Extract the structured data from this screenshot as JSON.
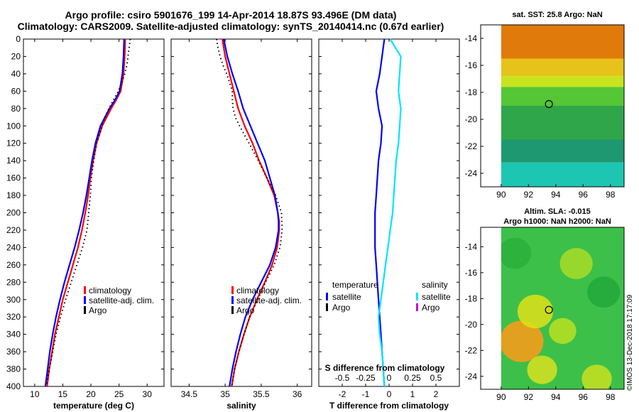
{
  "header": {
    "title_line1": "Argo profile: csiro 5901676_199 14-Apr-2014 18.87S 93.496E (DM data)",
    "title_line2": "Climatology: CARS2009. Satellite-adjusted climatology: synTS_20140414.nc (0.67d earlier)"
  },
  "colors": {
    "climatology": "#ff0000",
    "satellite": "#0000ff",
    "argo": "#000000",
    "sat_salinity": "#00e5ff",
    "argo_salinity": "#cc00cc"
  },
  "chart_data": [
    {
      "type": "line",
      "name": "temperature-profile",
      "xlabel": "temperature (deg C)",
      "ylabel": "depth",
      "xlim": [
        8,
        33
      ],
      "ylim": [
        0,
        400
      ],
      "xticks": [
        10,
        15,
        20,
        25,
        30
      ],
      "yticks": [
        0,
        20,
        40,
        60,
        80,
        100,
        120,
        140,
        160,
        180,
        200,
        220,
        240,
        260,
        280,
        300,
        320,
        340,
        360,
        380,
        400
      ],
      "legend": [
        "climatology",
        "satellite-adj. clim.",
        "Argo"
      ],
      "series": [
        {
          "name": "climatology",
          "style": "solid",
          "color": "#ff0000",
          "depth": [
            0,
            20,
            40,
            60,
            70,
            80,
            100,
            120,
            140,
            160,
            180,
            200,
            220,
            240,
            260,
            280,
            300,
            320,
            340,
            360,
            380,
            400
          ],
          "values": [
            26.1,
            26.0,
            25.8,
            25.3,
            24.5,
            23.6,
            22.0,
            21.0,
            20.4,
            19.9,
            19.5,
            19.0,
            18.4,
            17.7,
            16.8,
            15.9,
            15.0,
            14.3,
            13.6,
            13.1,
            12.6,
            12.2
          ]
        },
        {
          "name": "satellite-adj. clim.",
          "style": "solid",
          "color": "#0000ff",
          "depth": [
            0,
            20,
            40,
            60,
            70,
            80,
            100,
            120,
            140,
            160,
            180,
            200,
            220,
            240,
            260,
            280,
            300,
            320,
            340,
            360,
            380,
            400
          ],
          "values": [
            25.9,
            25.8,
            25.6,
            25.1,
            24.3,
            23.3,
            21.7,
            20.8,
            20.2,
            19.7,
            19.2,
            18.6,
            17.9,
            17.1,
            16.2,
            15.3,
            14.5,
            13.8,
            13.2,
            12.7,
            12.3,
            11.9
          ]
        },
        {
          "name": "Argo",
          "style": "dotted",
          "color": "#000000",
          "depth": [
            0,
            10,
            20,
            30,
            40,
            50,
            60,
            70,
            80,
            90,
            100,
            120,
            140,
            160,
            180,
            200,
            220,
            240,
            260,
            280,
            300,
            320,
            340,
            360,
            380,
            400
          ],
          "values": [
            27.0,
            26.8,
            26.6,
            26.4,
            26.0,
            25.5,
            24.9,
            24.0,
            23.2,
            22.5,
            22.0,
            21.0,
            20.5,
            20.1,
            19.9,
            19.6,
            19.3,
            18.5,
            17.5,
            16.5,
            15.5,
            14.6,
            13.8,
            13.2,
            12.6,
            12.1
          ]
        }
      ]
    },
    {
      "type": "line",
      "name": "salinity-profile",
      "xlabel": "salinity",
      "ylabel": "depth",
      "xlim": [
        34.25,
        36.2
      ],
      "ylim": [
        0,
        400
      ],
      "xticks": [
        34.5,
        35,
        35.5,
        36
      ],
      "yticks": [
        0,
        20,
        40,
        60,
        80,
        100,
        120,
        140,
        160,
        180,
        200,
        220,
        240,
        260,
        280,
        300,
        320,
        340,
        360,
        380,
        400
      ],
      "legend": [
        "climatology",
        "satellite-adj. clim.",
        "Argo"
      ],
      "series": [
        {
          "name": "climatology",
          "style": "solid",
          "color": "#ff0000",
          "depth": [
            0,
            20,
            40,
            60,
            80,
            100,
            120,
            140,
            160,
            180,
            200,
            210,
            220,
            240,
            260,
            280,
            300,
            320,
            340,
            360,
            380,
            400
          ],
          "values": [
            34.96,
            35.0,
            35.06,
            35.12,
            35.18,
            35.27,
            35.38,
            35.47,
            35.58,
            35.68,
            35.73,
            35.75,
            35.75,
            35.72,
            35.65,
            35.55,
            35.44,
            35.34,
            35.26,
            35.19,
            35.13,
            35.09
          ]
        },
        {
          "name": "satellite-adj. clim.",
          "style": "solid",
          "color": "#0000ff",
          "depth": [
            0,
            20,
            40,
            60,
            80,
            100,
            120,
            140,
            160,
            180,
            200,
            210,
            220,
            240,
            260,
            280,
            300,
            320,
            340,
            360,
            380,
            400
          ],
          "values": [
            34.98,
            35.03,
            35.1,
            35.18,
            35.25,
            35.35,
            35.45,
            35.55,
            35.62,
            35.69,
            35.73,
            35.74,
            35.74,
            35.7,
            35.62,
            35.5,
            35.38,
            35.28,
            35.21,
            35.15,
            35.1,
            35.06
          ]
        },
        {
          "name": "Argo",
          "style": "dotted",
          "color": "#000000",
          "depth": [
            0,
            10,
            20,
            30,
            40,
            50,
            60,
            70,
            80,
            90,
            100,
            120,
            140,
            160,
            180,
            200,
            220,
            240,
            260,
            280,
            300,
            320,
            340,
            360,
            380,
            400
          ],
          "values": [
            34.88,
            34.9,
            34.93,
            34.97,
            35.02,
            35.06,
            35.1,
            35.1,
            35.11,
            35.14,
            35.2,
            35.33,
            35.46,
            35.58,
            35.7,
            35.78,
            35.79,
            35.76,
            35.68,
            35.56,
            35.45,
            35.34,
            35.26,
            35.19,
            35.13,
            35.09
          ]
        }
      ]
    },
    {
      "type": "line",
      "name": "difference-profile",
      "xlabel": "T difference from climatology",
      "xlabel_top": "S difference from climatology",
      "xlim": [
        -3,
        3
      ],
      "ylim": [
        0,
        400
      ],
      "xticks": [
        -2,
        -1,
        0,
        1,
        2
      ],
      "xticklabels": [
        "-2",
        "-1",
        "0",
        "1",
        "2"
      ],
      "xticks_top": [
        -0.5,
        -0.25,
        0,
        0.25,
        0.5
      ],
      "xticks_top_pos": [
        -2,
        -1,
        0,
        1,
        2
      ],
      "xticklabels_top": [
        "-0.5",
        "-0.25",
        "0",
        "0.25",
        "0.5"
      ],
      "yticks": [
        0,
        20,
        40,
        60,
        80,
        100,
        120,
        140,
        160,
        180,
        200,
        220,
        240,
        260,
        280,
        300,
        320,
        340,
        360,
        380,
        400
      ],
      "legend_left_title": "temperature",
      "legend_right_title": "salinity",
      "legend_left": [
        "satellite",
        "Argo"
      ],
      "legend_right": [
        "satellite",
        "Argo"
      ],
      "series": [
        {
          "name": "temperature satellite",
          "color": "#0000ff",
          "depth": [
            0,
            20,
            40,
            60,
            80,
            100,
            120,
            140,
            160,
            180,
            200,
            220,
            240,
            260,
            280,
            300,
            320,
            340,
            360,
            380,
            400
          ],
          "values": [
            -0.2,
            -0.3,
            -0.4,
            -0.55,
            -0.45,
            -0.3,
            -0.35,
            -0.45,
            -0.5,
            -0.55,
            -0.6,
            -0.6,
            -0.6,
            -0.55,
            -0.5,
            -0.45,
            -0.4,
            -0.35,
            -0.3,
            -0.25,
            -0.2
          ]
        },
        {
          "name": "salinity satellite",
          "color": "#00e5ff",
          "depth": [
            0,
            20,
            40,
            60,
            80,
            100,
            120,
            140,
            160,
            180,
            200,
            220,
            240,
            260,
            280,
            300,
            320,
            340,
            360,
            380,
            400
          ],
          "values": [
            0.05,
            0.5,
            0.45,
            0.4,
            0.5,
            0.45,
            0.4,
            0.3,
            0.25,
            0.2,
            0.15,
            0.05,
            -0.05,
            -0.15,
            -0.25,
            -0.35,
            -0.45,
            -0.4,
            -0.3,
            -0.25,
            -0.2
          ]
        }
      ]
    },
    {
      "type": "heatmap",
      "name": "sst-map",
      "title": "sat. SST: 25.8 Argo: NaN",
      "xlim": [
        88.5,
        99
      ],
      "ylim": [
        -25,
        -13
      ],
      "xticks": [
        90,
        92,
        94,
        96,
        98
      ],
      "yticks": [
        -14,
        -16,
        -18,
        -20,
        -22,
        -24
      ],
      "data_lon_start": 90,
      "marker": [
        93.496,
        -18.87
      ],
      "bands": [
        {
          "lat": [
            -13,
            -15.5
          ],
          "color": "#e07a0a"
        },
        {
          "lat": [
            -15.5,
            -16.8
          ],
          "color": "#e7c21a"
        },
        {
          "lat": [
            -16.8,
            -17.6
          ],
          "color": "#c7e41e"
        },
        {
          "lat": [
            -17.6,
            -19.0
          ],
          "color": "#55c635"
        },
        {
          "lat": [
            -19.0,
            -21.5
          ],
          "color": "#2fa64a"
        },
        {
          "lat": [
            -21.5,
            -23.2
          ],
          "color": "#1e9870"
        },
        {
          "lat": [
            -23.2,
            -25
          ],
          "color": "#1cc6b2"
        }
      ]
    },
    {
      "type": "heatmap",
      "name": "sla-map",
      "title": "Altim. SLA: -0.015",
      "subtitle": "Argo h1000: NaN h2000: NaN",
      "xlim": [
        88.5,
        99
      ],
      "ylim": [
        -25,
        -12.5
      ],
      "xticks": [
        90,
        92,
        94,
        96,
        98
      ],
      "yticks": [
        -14,
        -16,
        -18,
        -20,
        -22,
        -24
      ],
      "data_lon_start": 90,
      "marker": [
        93.496,
        -18.87
      ],
      "base_color": "#3cc04a",
      "blobs": [
        {
          "lon": 91.5,
          "lat": -21.3,
          "r": 1.6,
          "color": "#ff9a1a"
        },
        {
          "lon": 92.5,
          "lat": -19.0,
          "r": 1.3,
          "color": "#dfe018"
        },
        {
          "lon": 94.5,
          "lat": -20.5,
          "r": 1.0,
          "color": "#b8e020"
        },
        {
          "lon": 95.5,
          "lat": -15.3,
          "r": 1.2,
          "color": "#a8dc28"
        },
        {
          "lon": 93.0,
          "lat": -23.5,
          "r": 1.1,
          "color": "#d8e020"
        },
        {
          "lon": 97.0,
          "lat": -24.2,
          "r": 1.1,
          "color": "#c8e020"
        },
        {
          "lon": 97.5,
          "lat": -17.5,
          "r": 1.2,
          "color": "#22a83a"
        },
        {
          "lon": 91.0,
          "lat": -14.5,
          "r": 1.2,
          "color": "#2aaf3c"
        }
      ]
    }
  ],
  "footer": {
    "credit": "©IMOS 13-Dec-2018 17:17:09"
  }
}
